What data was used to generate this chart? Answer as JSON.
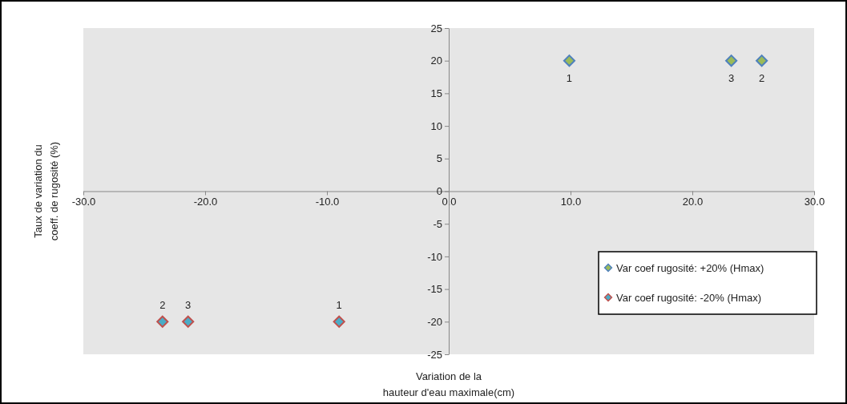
{
  "chart_data": {
    "type": "scatter",
    "xlabel": "Variation de la\nhauteur d'eau maximale(cm)",
    "ylabel": "Taux de variation du\ncoeff. de rugosité (%)",
    "xlim": [
      -30,
      30
    ],
    "ylim": [
      -25,
      25
    ],
    "xticks": [
      {
        "value": -30,
        "label": "-30.0"
      },
      {
        "value": -20,
        "label": "-20.0"
      },
      {
        "value": -10,
        "label": "-10.0"
      },
      {
        "value": 0,
        "label": "0.0"
      },
      {
        "value": 10,
        "label": "10.0"
      },
      {
        "value": 20,
        "label": "20.0"
      },
      {
        "value": 30,
        "label": "30.0"
      }
    ],
    "yticks": [
      -25,
      -20,
      -15,
      -10,
      -5,
      0,
      5,
      10,
      15,
      20,
      25
    ],
    "marker": "diamond",
    "grid": false,
    "legend": "bottom right",
    "series": [
      {
        "name": "Var coef rugosité: +20% (Hmax)",
        "color": "#9bbb59",
        "x": [
          9.9,
          25.7,
          23.2
        ],
        "values": [
          20,
          20,
          20
        ]
      },
      {
        "name": "Var coef rugosité: -20% (Hmax)",
        "color": "#4bacc6",
        "x": [
          -9.0,
          -23.5,
          -21.4
        ],
        "values": [
          -20,
          -20,
          -20
        ]
      }
    ],
    "annotations": [
      {
        "text": "1",
        "x": 9.9,
        "y": 20
      },
      {
        "text": "2",
        "x": 25.7,
        "y": 20
      },
      {
        "text": "3",
        "x": 23.2,
        "y": 20
      },
      {
        "text": "1",
        "x": -9.0,
        "y": -20
      },
      {
        "text": "2",
        "x": -23.5,
        "y": -20
      },
      {
        "text": "3",
        "x": -21.4,
        "y": -20
      }
    ]
  }
}
